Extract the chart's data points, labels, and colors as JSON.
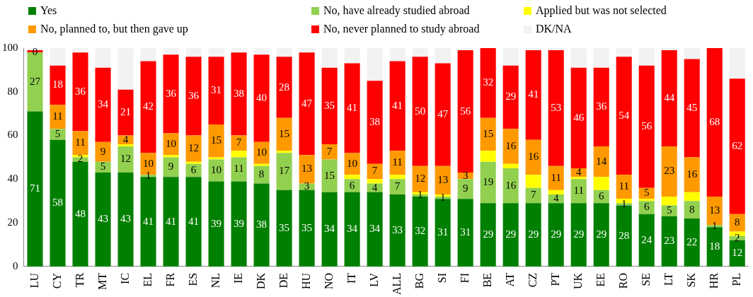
{
  "chart_data": {
    "type": "bar",
    "stacked": true,
    "legend": "top",
    "ylim": [
      0,
      100
    ],
    "yticks": [
      0,
      20,
      40,
      60,
      80,
      100
    ],
    "categories": [
      "LU",
      "CY",
      "TR",
      "MT",
      "IC",
      "EL",
      "FR",
      "ES",
      "NL",
      "IE",
      "DK",
      "DE",
      "HU",
      "NO",
      "IT",
      "LV",
      "ALL",
      "BG",
      "SI",
      "FI",
      "BE",
      "AT",
      "CZ",
      "PT",
      "UK",
      "EE",
      "RO",
      "SE",
      "LT",
      "SK",
      "HR",
      "PL"
    ],
    "series": [
      {
        "name": "Yes",
        "color": "#008000",
        "values": [
          71,
          58,
          48,
          43,
          43,
          41,
          41,
          41,
          39,
          39,
          38,
          35,
          35,
          34,
          34,
          34,
          33,
          32,
          31,
          31,
          29,
          29,
          29,
          29,
          29,
          29,
          28,
          24,
          23,
          22,
          18,
          12
        ],
        "value_labels": [
          "71",
          "58",
          "48",
          "43",
          "43",
          "41",
          "41",
          "41",
          "39",
          "39",
          "38",
          "35",
          "35",
          "34",
          "34",
          "34",
          "33",
          "32",
          "31",
          "31",
          "29",
          "29",
          "29",
          "29",
          "29",
          "29",
          "28",
          "24",
          "23",
          "22",
          "18",
          "12"
        ]
      },
      {
        "name": "No, have already studied abroad",
        "color": "#92d050",
        "values": [
          27,
          5,
          2,
          5,
          12,
          1,
          9,
          6,
          10,
          11,
          8,
          17,
          3,
          15,
          6,
          4,
          7,
          1,
          1,
          9,
          19,
          16,
          7,
          4,
          11,
          6,
          1,
          6,
          5,
          8,
          1,
          2
        ],
        "value_labels": [
          "27",
          "5",
          "2",
          "5",
          "12",
          "1",
          "9",
          "6",
          "10",
          "11",
          "8",
          "17",
          "3",
          "15",
          "6",
          "4",
          "7",
          "1",
          "1",
          "9",
          "19",
          "16",
          "7",
          "4",
          "11",
          "6",
          "1",
          "6",
          "5",
          "8",
          "1",
          "2"
        ]
      },
      {
        "name": "Applied but was not selected",
        "color": "#ffff00",
        "values": [
          0,
          0,
          1,
          0,
          1,
          0,
          1,
          1,
          1,
          3,
          1,
          1,
          0,
          0,
          2,
          2,
          2,
          1,
          1,
          0,
          5,
          2,
          6,
          2,
          1,
          6,
          2,
          1,
          4,
          4,
          0,
          2
        ],
        "value_labels": [
          null,
          null,
          null,
          null,
          null,
          null,
          null,
          null,
          null,
          null,
          null,
          null,
          null,
          null,
          null,
          null,
          null,
          null,
          null,
          null,
          null,
          null,
          null,
          null,
          null,
          null,
          null,
          null,
          null,
          null,
          null,
          null
        ]
      },
      {
        "name": "No, planned to, but then gave up",
        "color": "#ff9900",
        "values": [
          0,
          11,
          11,
          9,
          4,
          10,
          10,
          12,
          15,
          7,
          10,
          15,
          13,
          7,
          10,
          7,
          11,
          12,
          13,
          3,
          15,
          16,
          16,
          11,
          4,
          14,
          11,
          5,
          23,
          16,
          13,
          8
        ],
        "value_labels": [
          "0",
          "11",
          "11",
          "9",
          "4",
          "10",
          "10",
          "12",
          "15",
          "7",
          "10",
          "15",
          "13",
          "7",
          "10",
          "7",
          "11",
          "12",
          "13",
          "3",
          "15",
          "16",
          "16",
          "11",
          "4",
          "14",
          "11",
          "5",
          "23",
          "16",
          "13",
          "8"
        ]
      },
      {
        "name": "No, never planned to study abroad",
        "color": "#ff0000",
        "values": [
          1,
          18,
          36,
          34,
          21,
          42,
          36,
          36,
          31,
          38,
          40,
          28,
          47,
          35,
          41,
          38,
          41,
          50,
          47,
          56,
          32,
          29,
          41,
          53,
          46,
          36,
          54,
          56,
          44,
          45,
          68,
          62
        ],
        "value_labels": [
          null,
          "18",
          "36",
          "34",
          "21",
          "42",
          "36",
          "36",
          "31",
          "38",
          "40",
          "28",
          "47",
          "35",
          "41",
          "38",
          "41",
          "50",
          "47",
          "56",
          "32",
          "29",
          "41",
          "53",
          "46",
          "36",
          "54",
          "56",
          "44",
          "45",
          "68",
          "62"
        ]
      },
      {
        "name": "DK/NA",
        "color": "#f2f2f2",
        "values": [
          1,
          8,
          2,
          9,
          19,
          6,
          3,
          4,
          4,
          2,
          3,
          4,
          2,
          9,
          7,
          15,
          6,
          4,
          7,
          1,
          0,
          8,
          1,
          1,
          9,
          9,
          4,
          8,
          1,
          5,
          0,
          14
        ],
        "value_labels": [
          null,
          null,
          null,
          null,
          null,
          null,
          null,
          null,
          null,
          null,
          null,
          null,
          null,
          null,
          null,
          null,
          null,
          null,
          null,
          null,
          null,
          null,
          null,
          null,
          null,
          null,
          null,
          null,
          null,
          null,
          null,
          null
        ]
      }
    ]
  }
}
